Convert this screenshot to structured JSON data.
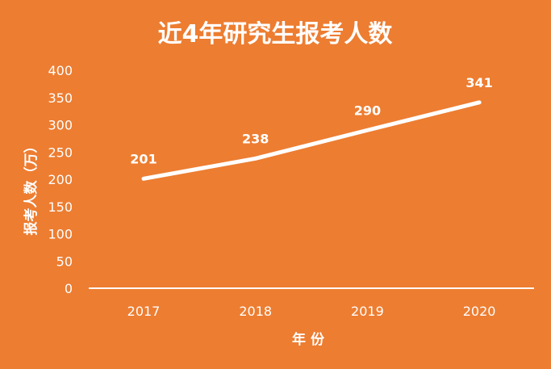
{
  "chart_data": {
    "type": "line",
    "title": "近4年研究生报考人数",
    "xlabel": "年 份",
    "ylabel": "报考人数（万）",
    "categories": [
      "2017",
      "2018",
      "2019",
      "2020"
    ],
    "values": [
      201,
      238,
      290,
      341
    ],
    "data_labels": [
      "201",
      "238",
      "290",
      "341"
    ],
    "ylim": [
      0,
      400
    ],
    "yticks": [
      "0",
      "50",
      "100",
      "150",
      "200",
      "250",
      "300",
      "350",
      "400"
    ],
    "grid": false,
    "drop_lines": true,
    "colors": {
      "background": "#ED7D31",
      "line": "#FFFFFF"
    }
  }
}
